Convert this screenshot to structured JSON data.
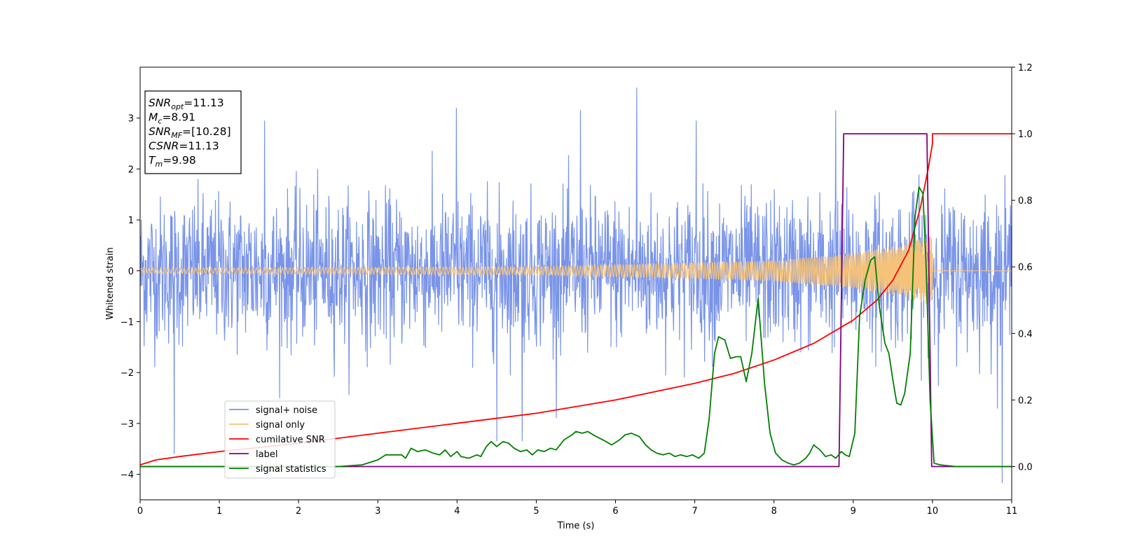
{
  "chart_data": {
    "type": "line",
    "xlabel": "Time (s)",
    "ylabel": "Whitened strain",
    "xlim": [
      0,
      11
    ],
    "ylim": [
      -4.5,
      4.0
    ],
    "y2lim": [
      -0.1,
      1.2
    ],
    "x_ticks": [
      0,
      1,
      2,
      3,
      4,
      5,
      6,
      7,
      8,
      9,
      10,
      11
    ],
    "y_ticks": [
      -4,
      -3,
      -2,
      -1,
      0,
      1,
      2,
      3
    ],
    "y_tick_labels": [
      "−4",
      "−3",
      "−2",
      "−1",
      "0",
      "1",
      "2",
      "3"
    ],
    "y2_ticks": [
      0.0,
      0.2,
      0.4,
      0.6,
      0.8,
      1.0,
      1.2
    ],
    "y2_tick_labels": [
      "0.0",
      "0.2",
      "0.4",
      "0.6",
      "0.8",
      "1.0",
      "1.2"
    ],
    "grid": false,
    "legend_position": "lower-left",
    "annotation": {
      "lines": [
        {
          "italic": "SNR",
          "sub": "opt",
          "rest": "=11.13"
        },
        {
          "italic": "M",
          "sub": "c",
          "rest": "=8.91"
        },
        {
          "italic": "SNR",
          "sub": "MF",
          "rest": "=[10.28]"
        },
        {
          "italic": "CSNR",
          "sub": "",
          "rest": "=11.13"
        },
        {
          "italic": "T",
          "sub": "m",
          "rest": "=9.98"
        }
      ]
    },
    "series": [
      {
        "name": "signal+ noise",
        "axis": "left",
        "color": "#7994e8",
        "style": "noise",
        "x_range": [
          0,
          11
        ],
        "typical_envelope": [
          -1.9,
          2.0
        ],
        "peaks": [
          {
            "x": 6.27,
            "y": 3.6
          },
          {
            "x": 10.88,
            "y": -4.17
          },
          {
            "x": 0.43,
            "y": -3.6
          },
          {
            "x": 4.5,
            "y": -3.35
          },
          {
            "x": 4.82,
            "y": -3.35
          },
          {
            "x": 8.78,
            "y": 3.15
          },
          {
            "x": 3.99,
            "y": 3.2
          },
          {
            "x": 5.56,
            "y": 3.15
          },
          {
            "x": 1.57,
            "y": 2.95
          },
          {
            "x": 7.02,
            "y": 2.95
          }
        ]
      },
      {
        "name": "signal only",
        "axis": "left",
        "color": "#f5c27a",
        "style": "chirp",
        "x_range": [
          0,
          10
        ],
        "amplitude_points": [
          [
            0,
            0.05
          ],
          [
            5,
            0.08
          ],
          [
            8,
            0.2
          ],
          [
            9,
            0.35
          ],
          [
            9.6,
            0.5
          ],
          [
            10,
            0.7
          ]
        ]
      },
      {
        "name": "cumilative SNR",
        "axis": "right",
        "color": "#ff0000",
        "points": [
          [
            0,
            0.005
          ],
          [
            0.2,
            0.02
          ],
          [
            0.5,
            0.03
          ],
          [
            1,
            0.045
          ],
          [
            2,
            0.07
          ],
          [
            3,
            0.1
          ],
          [
            4,
            0.13
          ],
          [
            5,
            0.16
          ],
          [
            6,
            0.2
          ],
          [
            7,
            0.25
          ],
          [
            7.5,
            0.28
          ],
          [
            8,
            0.32
          ],
          [
            8.5,
            0.37
          ],
          [
            9,
            0.44
          ],
          [
            9.3,
            0.5
          ],
          [
            9.5,
            0.56
          ],
          [
            9.7,
            0.65
          ],
          [
            9.85,
            0.78
          ],
          [
            9.95,
            0.9
          ],
          [
            10.0,
            0.97
          ],
          [
            10.0,
            1.0
          ],
          [
            11,
            1.0
          ]
        ]
      },
      {
        "name": "label",
        "axis": "right",
        "color": "#800080",
        "points": [
          [
            0,
            0
          ],
          [
            8.82,
            0
          ],
          [
            8.88,
            1.0
          ],
          [
            9.93,
            1.0
          ],
          [
            9.99,
            0
          ],
          [
            11,
            0
          ]
        ]
      },
      {
        "name": "signal statistics",
        "axis": "right",
        "color": "#008000",
        "points": [
          [
            0,
            0.0
          ],
          [
            1,
            0.0
          ],
          [
            2,
            0.0
          ],
          [
            2.5,
            0.0
          ],
          [
            2.8,
            0.005
          ],
          [
            3,
            0.02
          ],
          [
            3.1,
            0.035
          ],
          [
            3.2,
            0.035
          ],
          [
            3.3,
            0.035
          ],
          [
            3.35,
            0.025
          ],
          [
            3.42,
            0.055
          ],
          [
            3.5,
            0.045
          ],
          [
            3.6,
            0.05
          ],
          [
            3.7,
            0.04
          ],
          [
            3.78,
            0.035
          ],
          [
            3.85,
            0.05
          ],
          [
            3.92,
            0.03
          ],
          [
            4.0,
            0.045
          ],
          [
            4.05,
            0.03
          ],
          [
            4.15,
            0.025
          ],
          [
            4.25,
            0.035
          ],
          [
            4.3,
            0.03
          ],
          [
            4.37,
            0.06
          ],
          [
            4.43,
            0.075
          ],
          [
            4.5,
            0.06
          ],
          [
            4.58,
            0.075
          ],
          [
            4.65,
            0.07
          ],
          [
            4.72,
            0.055
          ],
          [
            4.8,
            0.045
          ],
          [
            4.88,
            0.05
          ],
          [
            4.95,
            0.035
          ],
          [
            5.02,
            0.05
          ],
          [
            5.1,
            0.045
          ],
          [
            5.18,
            0.055
          ],
          [
            5.25,
            0.05
          ],
          [
            5.35,
            0.08
          ],
          [
            5.45,
            0.095
          ],
          [
            5.5,
            0.105
          ],
          [
            5.58,
            0.1
          ],
          [
            5.65,
            0.105
          ],
          [
            5.72,
            0.095
          ],
          [
            5.8,
            0.085
          ],
          [
            5.88,
            0.075
          ],
          [
            5.95,
            0.065
          ],
          [
            6.05,
            0.08
          ],
          [
            6.12,
            0.095
          ],
          [
            6.2,
            0.1
          ],
          [
            6.3,
            0.09
          ],
          [
            6.38,
            0.065
          ],
          [
            6.45,
            0.05
          ],
          [
            6.52,
            0.04
          ],
          [
            6.6,
            0.035
          ],
          [
            6.68,
            0.04
          ],
          [
            6.75,
            0.03
          ],
          [
            6.82,
            0.035
          ],
          [
            6.9,
            0.03
          ],
          [
            6.97,
            0.035
          ],
          [
            7.05,
            0.025
          ],
          [
            7.12,
            0.04
          ],
          [
            7.18,
            0.14
          ],
          [
            7.25,
            0.34
          ],
          [
            7.3,
            0.39
          ],
          [
            7.38,
            0.38
          ],
          [
            7.45,
            0.325
          ],
          [
            7.52,
            0.33
          ],
          [
            7.58,
            0.33
          ],
          [
            7.65,
            0.255
          ],
          [
            7.72,
            0.34
          ],
          [
            7.8,
            0.505
          ],
          [
            7.88,
            0.25
          ],
          [
            7.95,
            0.1
          ],
          [
            8.02,
            0.04
          ],
          [
            8.1,
            0.02
          ],
          [
            8.18,
            0.01
          ],
          [
            8.25,
            0.005
          ],
          [
            8.32,
            0.01
          ],
          [
            8.4,
            0.025
          ],
          [
            8.45,
            0.04
          ],
          [
            8.5,
            0.065
          ],
          [
            8.58,
            0.05
          ],
          [
            8.65,
            0.03
          ],
          [
            8.72,
            0.035
          ],
          [
            8.78,
            0.025
          ],
          [
            8.85,
            0.045
          ],
          [
            8.9,
            0.035
          ],
          [
            8.95,
            0.03
          ],
          [
            9.02,
            0.1
          ],
          [
            9.08,
            0.45
          ],
          [
            9.15,
            0.56
          ],
          [
            9.22,
            0.62
          ],
          [
            9.27,
            0.63
          ],
          [
            9.33,
            0.48
          ],
          [
            9.4,
            0.37
          ],
          [
            9.45,
            0.34
          ],
          [
            9.5,
            0.26
          ],
          [
            9.55,
            0.19
          ],
          [
            9.6,
            0.185
          ],
          [
            9.65,
            0.22
          ],
          [
            9.72,
            0.34
          ],
          [
            9.78,
            0.75
          ],
          [
            9.83,
            0.84
          ],
          [
            9.88,
            0.82
          ],
          [
            9.92,
            0.6
          ],
          [
            9.97,
            0.2
          ],
          [
            10.02,
            0.01
          ],
          [
            10.1,
            0.005
          ],
          [
            10.3,
            0.0
          ],
          [
            11,
            0.0
          ]
        ]
      }
    ]
  }
}
